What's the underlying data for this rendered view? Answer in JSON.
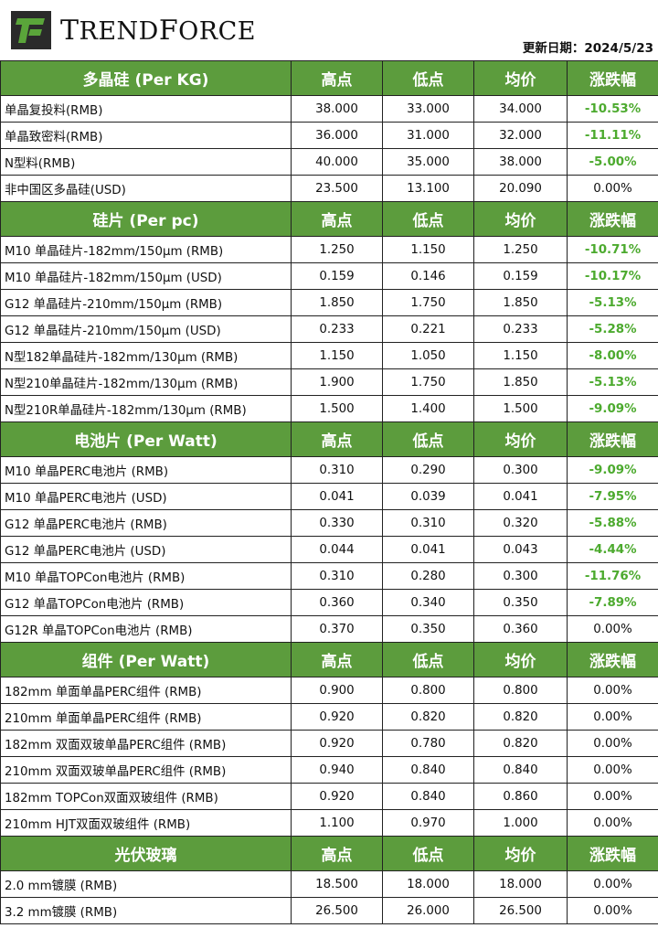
{
  "header": {
    "brand_initial_1": "T",
    "brand_rest_1": "REND",
    "brand_initial_2": "F",
    "brand_rest_2": "ORCE",
    "update_label": "更新日期：",
    "update_date": "2024/5/23"
  },
  "colors": {
    "section_header_bg": "#5c9c3d",
    "negative_change": "#4caa2e",
    "logo_green": "#5aa53a",
    "logo_dark": "#2a2a2a"
  },
  "icons": {
    "logo": "trendforce-logo-icon"
  },
  "sections": [
    {
      "title": "多晶硅 (Per KG)",
      "col_high": "高点",
      "col_low": "低点",
      "col_avg": "均价",
      "col_change": "涨跌幅",
      "rows": [
        {
          "name": "单晶复投料(RMB)",
          "high": "38.000",
          "low": "33.000",
          "avg": "34.000",
          "change": "-10.53%"
        },
        {
          "name": "单晶致密料(RMB)",
          "high": "36.000",
          "low": "31.000",
          "avg": "32.000",
          "change": "-11.11%"
        },
        {
          "name": "N型料(RMB)",
          "high": "40.000",
          "low": "35.000",
          "avg": "38.000",
          "change": "-5.00%"
        },
        {
          "name": "非中国区多晶硅(USD)",
          "high": "23.500",
          "low": "13.100",
          "avg": "20.090",
          "change": "0.00%"
        }
      ]
    },
    {
      "title": "硅片 (Per pc)",
      "col_high": "高点",
      "col_low": "低点",
      "col_avg": "均价",
      "col_change": "涨跌幅",
      "rows": [
        {
          "name": "M10 单晶硅片-182mm/150μm (RMB)",
          "high": "1.250",
          "low": "1.150",
          "avg": "1.250",
          "change": "-10.71%"
        },
        {
          "name": "M10 单晶硅片-182mm/150μm (USD)",
          "high": "0.159",
          "low": "0.146",
          "avg": "0.159",
          "change": "-10.17%"
        },
        {
          "name": "G12 单晶硅片-210mm/150μm  (RMB)",
          "high": "1.850",
          "low": "1.750",
          "avg": "1.850",
          "change": "-5.13%"
        },
        {
          "name": "G12 单晶硅片-210mm/150μm  (USD)",
          "high": "0.233",
          "low": "0.221",
          "avg": "0.233",
          "change": "-5.28%"
        },
        {
          "name": "N型182单晶硅片-182mm/130μm (RMB)",
          "high": "1.150",
          "low": "1.050",
          "avg": "1.150",
          "change": "-8.00%"
        },
        {
          "name": "N型210单晶硅片-182mm/130μm (RMB)",
          "high": "1.900",
          "low": "1.750",
          "avg": "1.850",
          "change": "-5.13%"
        },
        {
          "name": "N型210R单晶硅片-182mm/130μm (RMB)",
          "high": "1.500",
          "low": "1.400",
          "avg": "1.500",
          "change": "-9.09%"
        }
      ]
    },
    {
      "title": "电池片 (Per Watt)",
      "col_high": "高点",
      "col_low": "低点",
      "col_avg": "均价",
      "col_change": "涨跌幅",
      "rows": [
        {
          "name": "M10 单晶PERC电池片 (RMB)",
          "high": "0.310",
          "low": "0.290",
          "avg": "0.300",
          "change": "-9.09%"
        },
        {
          "name": "M10 单晶PERC电池片 (USD)",
          "high": "0.041",
          "low": "0.039",
          "avg": "0.041",
          "change": "-7.95%"
        },
        {
          "name": "G12 单晶PERC电池片 (RMB)",
          "high": "0.330",
          "low": "0.310",
          "avg": "0.320",
          "change": "-5.88%"
        },
        {
          "name": "G12 单晶PERC电池片 (USD)",
          "high": "0.044",
          "low": "0.041",
          "avg": "0.043",
          "change": "-4.44%"
        },
        {
          "name": "M10 单晶TOPCon电池片 (RMB)",
          "high": "0.310",
          "low": "0.280",
          "avg": "0.300",
          "change": "-11.76%"
        },
        {
          "name": "G12 单晶TOPCon电池片 (RMB)",
          "high": "0.360",
          "low": "0.340",
          "avg": "0.350",
          "change": "-7.89%"
        },
        {
          "name": "G12R 单晶TOPCon电池片 (RMB)",
          "high": "0.370",
          "low": "0.350",
          "avg": "0.360",
          "change": "0.00%"
        }
      ]
    },
    {
      "title": "组件 (Per Watt)",
      "col_high": "高点",
      "col_low": "低点",
      "col_avg": "均价",
      "col_change": "涨跌幅",
      "rows": [
        {
          "name": "182mm 单面单晶PERC组件 (RMB)",
          "high": "0.900",
          "low": "0.800",
          "avg": "0.800",
          "change": "0.00%"
        },
        {
          "name": "210mm 单面单晶PERC组件 (RMB)",
          "high": "0.920",
          "low": "0.820",
          "avg": "0.820",
          "change": "0.00%"
        },
        {
          "name": "182mm 双面双玻单晶PERC组件 (RMB)",
          "high": "0.920",
          "low": "0.780",
          "avg": "0.820",
          "change": "0.00%"
        },
        {
          "name": "210mm 双面双玻单晶PERC组件 (RMB)",
          "high": "0.940",
          "low": "0.840",
          "avg": "0.840",
          "change": "0.00%"
        },
        {
          "name": "182mm TOPCon双面双玻组件 (RMB)",
          "high": "0.920",
          "low": "0.840",
          "avg": "0.860",
          "change": "0.00%"
        },
        {
          "name": "210mm HJT双面双玻组件 (RMB)",
          "high": "1.100",
          "low": "0.970",
          "avg": "1.000",
          "change": "0.00%"
        }
      ]
    },
    {
      "title": "光伏玻璃",
      "col_high": "高点",
      "col_low": "低点",
      "col_avg": "均价",
      "col_change": "涨跌幅",
      "rows": [
        {
          "name": "2.0 mm镀膜 (RMB)",
          "high": "18.500",
          "low": "18.000",
          "avg": "18.000",
          "change": "0.00%"
        },
        {
          "name": "3.2 mm镀膜 (RMB)",
          "high": "26.500",
          "low": "26.000",
          "avg": "26.500",
          "change": "0.00%"
        }
      ]
    }
  ]
}
